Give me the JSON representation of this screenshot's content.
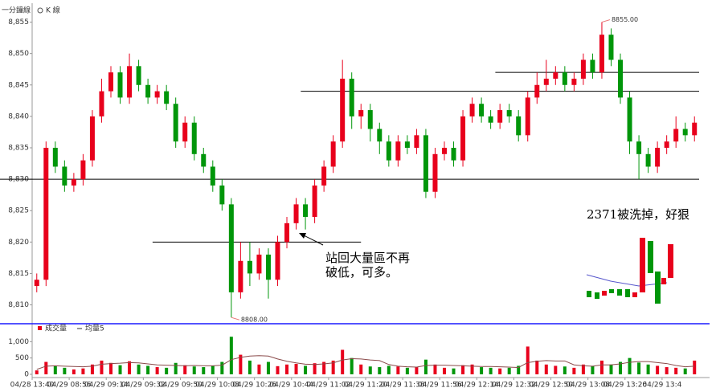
{
  "chart_data": {
    "type": "candlestick",
    "title": "一分鐘線",
    "subtitle": "K 線",
    "categories": [
      "04/28 13:40",
      null,
      null,
      null,
      "04/29 08:56",
      null,
      null,
      null,
      "04/29 09:14",
      null,
      null,
      null,
      "04/29 09:32",
      null,
      null,
      null,
      "04/29 09:50",
      null,
      null,
      null,
      "04/29 10:08",
      null,
      null,
      null,
      "04/29 10:26",
      null,
      null,
      null,
      "04/29 10:44",
      null,
      null,
      null,
      "04/29 11:02",
      null,
      null,
      null,
      "04/29 11:20",
      null,
      null,
      null,
      "04/29 11:38",
      null,
      null,
      null,
      "04/29 11:56",
      null,
      null,
      null,
      "04/29 12:14",
      null,
      null,
      null,
      "04/29 12:32",
      null,
      null,
      null,
      "04/29 12:50",
      null,
      null,
      null,
      "04/29 13:08",
      null,
      null,
      null,
      "04/29 13:26",
      null,
      null,
      null,
      "04/29 13:4",
      null,
      null,
      null
    ],
    "open": [
      8813,
      8814,
      8835,
      8832,
      8829,
      8830,
      8833,
      8840,
      8844,
      8847,
      8843,
      8848,
      8845,
      8843,
      8844,
      8842,
      8836,
      8839,
      8834,
      8832,
      8829,
      8826,
      8812,
      8817,
      8815,
      8818,
      8814,
      8820,
      8823,
      8826,
      8824,
      8829,
      8832,
      8836,
      8846,
      8840,
      8841,
      8838,
      8836,
      8833,
      8836,
      8835,
      8837,
      8828,
      8834,
      8835,
      8833,
      8840,
      8842,
      8840,
      8839,
      8841,
      8840,
      8837,
      8843,
      8845,
      8846,
      8847,
      8845,
      8846,
      8849,
      8847,
      8853,
      8849,
      8843,
      8836,
      8834,
      8832,
      8835,
      8836,
      8838,
      8837
    ],
    "high": [
      8815,
      8836,
      8836,
      8833,
      8831,
      8834,
      8841,
      8846,
      8848,
      8848,
      8850,
      8849,
      8846,
      8845,
      8845,
      8843,
      8840,
      8840,
      8835,
      8833,
      8830,
      8827,
      8820,
      8820,
      8819,
      8819,
      8821,
      8824,
      8827,
      8827,
      8830,
      8833,
      8837,
      8849,
      8847,
      8842,
      8842,
      8839,
      8837,
      8837,
      8837,
      8838,
      8838,
      8835,
      8836,
      8836,
      8841,
      8843,
      8843,
      8841,
      8842,
      8842,
      8841,
      8844,
      8847,
      8849,
      8848,
      8848,
      8847,
      8850,
      8850,
      8855,
      8854,
      8850,
      8844,
      8837,
      8835,
      8836,
      8837,
      8840,
      8839,
      8840
    ],
    "low": [
      8812,
      8813,
      8831,
      8828,
      8828,
      8829,
      8832,
      8839,
      8843,
      8842,
      8842,
      8844,
      8842,
      8842,
      8841,
      8835,
      8835,
      8833,
      8831,
      8828,
      8825,
      8808,
      8811,
      8813,
      8814,
      8811,
      8813,
      8819,
      8822,
      8822,
      8823,
      8828,
      8831,
      8835,
      8838,
      8838,
      8836,
      8834,
      8832,
      8832,
      8834,
      8834,
      8827,
      8827,
      8833,
      8832,
      8832,
      8839,
      8839,
      8838,
      8838,
      8839,
      8836,
      8836,
      8842,
      8844,
      8845,
      8844,
      8844,
      8845,
      8846,
      8846,
      8848,
      8842,
      8834,
      8830,
      8831,
      8831,
      8834,
      8835,
      8836,
      8836
    ],
    "close": [
      8814,
      8835,
      8832,
      8829,
      8830,
      8833,
      8840,
      8844,
      8847,
      8843,
      8848,
      8845,
      8843,
      8844,
      8842,
      8836,
      8839,
      8834,
      8832,
      8829,
      8826,
      8812,
      8817,
      8815,
      8818,
      8814,
      8820,
      8823,
      8826,
      8824,
      8829,
      8832,
      8836,
      8846,
      8840,
      8841,
      8838,
      8836,
      8833,
      8836,
      8835,
      8837,
      8828,
      8834,
      8835,
      8833,
      8840,
      8842,
      8840,
      8839,
      8841,
      8840,
      8837,
      8843,
      8845,
      8846,
      8847,
      8845,
      8846,
      8849,
      8847,
      8853,
      8849,
      8843,
      8836,
      8834,
      8832,
      8835,
      8836,
      8838,
      8837,
      8839
    ],
    "up_color": "#e8001c",
    "down_color": "#00960a",
    "ylim": [
      8807,
      8857.5
    ],
    "yticks": [
      {
        "value": 8810,
        "label": "8,810"
      },
      {
        "value": 8815,
        "label": "8,815"
      },
      {
        "value": 8820,
        "label": "8,820"
      },
      {
        "value": 8825,
        "label": "8,825"
      },
      {
        "value": 8830,
        "label": "8,830"
      },
      {
        "value": 8835,
        "label": "8,835"
      },
      {
        "value": 8840,
        "label": "8,840"
      },
      {
        "value": 8845,
        "label": "8,845"
      },
      {
        "value": 8850,
        "label": "8,850"
      },
      {
        "value": 8855,
        "label": "8,855"
      }
    ],
    "high_label": {
      "value": 8855,
      "label": "8855.00"
    },
    "low_label": {
      "value": 8808,
      "label": "8808.00"
    },
    "reference_lines": [
      {
        "value": 8830,
        "from": 0,
        "to": 72
      },
      {
        "value": 8844,
        "from": 29,
        "to": 72
      },
      {
        "value": 8847,
        "from": 50,
        "to": 72
      },
      {
        "value": 8820,
        "from": 13,
        "to": 35.5
      }
    ],
    "annotations": [
      "站回大量區不再",
      "破低，可多。",
      "2371被洗掉，好狠"
    ],
    "volume": {
      "series": [
        {
          "name": "成交量",
          "color": "#e8001c",
          "values": [
            120,
            380,
            260,
            200,
            150,
            180,
            300,
            420,
            350,
            280,
            400,
            300,
            260,
            220,
            200,
            350,
            280,
            240,
            220,
            260,
            380,
            1150,
            600,
            420,
            300,
            380,
            250,
            300,
            320,
            260,
            340,
            380,
            420,
            750,
            500,
            300,
            240,
            220,
            260,
            240,
            200,
            220,
            450,
            300,
            200,
            180,
            280,
            300,
            220,
            200,
            180,
            200,
            260,
            850,
            420,
            300,
            260,
            240,
            200,
            300,
            260,
            420,
            300,
            380,
            500,
            360,
            300,
            260,
            220,
            200,
            180,
            420
          ]
        },
        {
          "name": "均量5",
          "color": "#8a4a4a",
          "values": [
            150,
            250,
            260,
            250,
            240,
            230,
            250,
            310,
            330,
            340,
            360,
            350,
            320,
            290,
            280,
            270,
            260,
            270,
            260,
            260,
            280,
            450,
            520,
            560,
            570,
            560,
            470,
            400,
            350,
            310,
            300,
            320,
            350,
            440,
            480,
            470,
            440,
            420,
            300,
            250,
            230,
            220,
            270,
            280,
            280,
            270,
            260,
            250,
            240,
            240,
            230,
            220,
            210,
            360,
            400,
            420,
            410,
            410,
            290,
            260,
            250,
            290,
            290,
            320,
            370,
            390,
            390,
            360,
            330,
            270,
            230,
            250
          ]
        }
      ],
      "ylim": [
        0,
        1450
      ],
      "yticks": [
        0,
        500,
        {
          "value": 1000,
          "label": "1,000"
        }
      ]
    }
  }
}
